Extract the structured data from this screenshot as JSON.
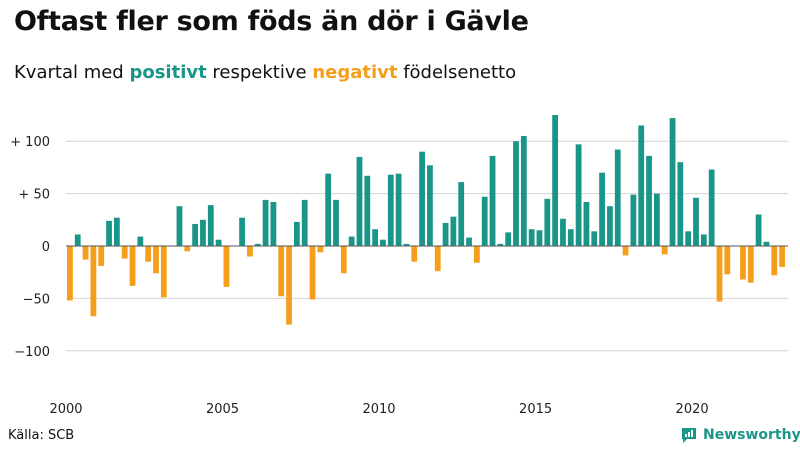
{
  "header": {
    "title": "Oftast fler som föds än dör i Gävle",
    "subtitle_before": "Kvartal med ",
    "subtitle_positive": "positivt",
    "subtitle_middle": " respektive ",
    "subtitle_negative": "negativt",
    "subtitle_after": " födelsenetto"
  },
  "footer": {
    "source": "Källa: SCB",
    "brand": "Newsworthy"
  },
  "colors": {
    "positive": "#1a9688",
    "negative": "#f59e1c",
    "grid": "#d4d4d4",
    "baseline": "#555555"
  },
  "chart_data": {
    "type": "bar",
    "title": "Oftast fler som föds än dör i Gävle",
    "subtitle": "Kvartal med positivt respektive negativt födelsenetto",
    "xlabel": "",
    "ylabel": "",
    "ylim": [
      -130,
      130
    ],
    "grid": true,
    "y_ticks": [
      {
        "value": 100,
        "label": "+ 100"
      },
      {
        "value": 50,
        "label": "+  50"
      },
      {
        "value": 0,
        "label": "0"
      },
      {
        "value": -50,
        "label": "−50"
      },
      {
        "value": -100,
        "label": "−100"
      }
    ],
    "x_ticks": [
      {
        "quarter_index": 0,
        "label": "2000"
      },
      {
        "quarter_index": 20,
        "label": "2005"
      },
      {
        "quarter_index": 40,
        "label": "2010"
      },
      {
        "quarter_index": 60,
        "label": "2015"
      },
      {
        "quarter_index": 80,
        "label": "2020"
      }
    ],
    "start_year": 2000,
    "values": [
      -52,
      11,
      -13,
      -67,
      -19,
      24,
      27,
      -12,
      -38,
      9,
      -15,
      -26,
      -49,
      0,
      38,
      -5,
      21,
      25,
      39,
      6,
      -39,
      0,
      27,
      -10,
      2,
      44,
      42,
      -48,
      -75,
      23,
      44,
      -51,
      -6,
      69,
      44,
      -26,
      9,
      85,
      67,
      16,
      6,
      68,
      69,
      2,
      -15,
      90,
      77,
      -24,
      22,
      28,
      61,
      8,
      -16,
      47,
      86,
      2,
      13,
      100,
      105,
      16,
      15,
      45,
      125,
      26,
      16,
      97,
      42,
      14,
      70,
      38,
      92,
      -9,
      49,
      115,
      86,
      50,
      -8,
      122,
      80,
      14,
      46,
      11,
      73,
      -53,
      -27,
      0,
      -32,
      -35,
      30,
      4,
      -28,
      -20
    ]
  }
}
